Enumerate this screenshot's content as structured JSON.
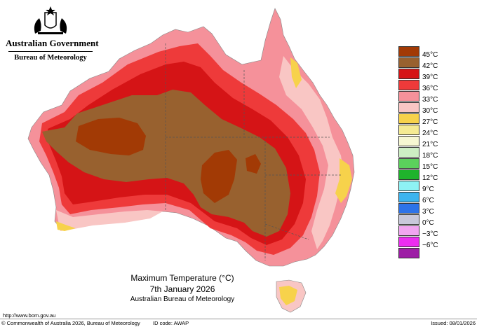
{
  "header": {
    "government": "Australian Government",
    "bureau": "Bureau of Meteorology"
  },
  "map": {
    "title": "Maximum Temperature (°C)",
    "date": "7th January 2026",
    "source": "Australian Bureau of Meteorology",
    "colors": {
      "45": "#a23a05",
      "42": "#98612f",
      "39": "#d51416",
      "36": "#ee3a3a",
      "33": "#f5919a",
      "30": "#f9c6c4",
      "27": "#f7d24b",
      "ocean": "#ffffff"
    }
  },
  "legend": {
    "items": [
      {
        "label": "45°C",
        "color": "#a23a05"
      },
      {
        "label": "42°C",
        "color": "#98612f"
      },
      {
        "label": "39°C",
        "color": "#d51416"
      },
      {
        "label": "36°C",
        "color": "#ee3a3a"
      },
      {
        "label": "33°C",
        "color": "#f5919a"
      },
      {
        "label": "30°C",
        "color": "#f9c6c4"
      },
      {
        "label": "27°C",
        "color": "#f7d24b"
      },
      {
        "label": "24°C",
        "color": "#f5eb93"
      },
      {
        "label": "21°C",
        "color": "#f6f7d2"
      },
      {
        "label": "18°C",
        "color": "#cdeec4"
      },
      {
        "label": "15°C",
        "color": "#5bd15c"
      },
      {
        "label": "12°C",
        "color": "#1fb32c"
      },
      {
        "label": "9°C",
        "color": "#8ef2f4"
      },
      {
        "label": "6°C",
        "color": "#3cb4ee"
      },
      {
        "label": "3°C",
        "color": "#2d73e8"
      },
      {
        "label": "0°C",
        "color": "#c8c8da"
      },
      {
        "label": "−3°C",
        "color": "#f1a5f0"
      },
      {
        "label": "−6°C",
        "color": "#ec2df0"
      },
      {
        "label": "",
        "color": "#9d1ea5"
      }
    ]
  },
  "footer": {
    "url": "http://www.bom.gov.au",
    "copyright": "© Commonwealth of Australia 2026, Bureau of Meteorology",
    "id_code": "ID code: AWAP",
    "issued": "Issued: 08/01/2026"
  }
}
